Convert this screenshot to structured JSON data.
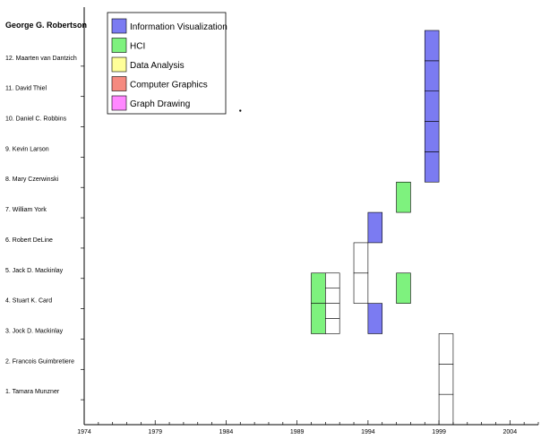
{
  "chart_data": {
    "type": "timeline",
    "title": "",
    "subject": "George G. Robertson",
    "rows": [
      "1. Tamara Munzner",
      "2. Francois Guimbretiere",
      "3. Jock D. Mackinlay",
      "4. Stuart K. Card",
      "5. Jack D. Mackinlay",
      "6. Robert DeLine",
      "7. William York",
      "8. Mary Czerwinski",
      "9. Kevin Larson",
      "10. Daniel C. Robbins",
      "11. David Thiel",
      "12. Maarten van Dantzich"
    ],
    "x_axis": {
      "min": 1974,
      "max": 2006,
      "ticks": [
        1974,
        1979,
        1984,
        1989,
        1994,
        1999,
        2004
      ],
      "minor_step": 1
    },
    "categories": [
      {
        "name": "Information Visualization",
        "color": "#7b7bf2"
      },
      {
        "name": "HCI",
        "color": "#7ef27e"
      },
      {
        "name": "Data Analysis",
        "color": "#ffff99"
      },
      {
        "name": "Computer Graphics",
        "color": "#f58a80"
      },
      {
        "name": "Graph Drawing",
        "color": "#ff88ff"
      }
    ],
    "legend_position": "top-left",
    "point": {
      "year": 1985,
      "row": 10
    },
    "cells": [
      {
        "year": 1990,
        "row_from": 3,
        "row_to": 4,
        "category": "HCI"
      },
      {
        "year": 1990,
        "row_from": 4,
        "row_to": 5,
        "category": "HCI"
      },
      {
        "year": 1991,
        "row_from": 3,
        "row_to": 3.5,
        "category": null
      },
      {
        "year": 1991,
        "row_from": 3.5,
        "row_to": 4,
        "category": null
      },
      {
        "year": 1991,
        "row_from": 4,
        "row_to": 4.5,
        "category": null
      },
      {
        "year": 1991,
        "row_from": 4.5,
        "row_to": 5,
        "category": null
      },
      {
        "year": 1993,
        "row_from": 4,
        "row_to": 5,
        "category": null
      },
      {
        "year": 1993,
        "row_from": 5,
        "row_to": 6,
        "category": null
      },
      {
        "year": 1994,
        "row_from": 3,
        "row_to": 4,
        "category": "Information Visualization"
      },
      {
        "year": 1994,
        "row_from": 6,
        "row_to": 7,
        "category": "Information Visualization"
      },
      {
        "year": 1996,
        "row_from": 4,
        "row_to": 5,
        "category": "HCI"
      },
      {
        "year": 1996,
        "row_from": 7,
        "row_to": 8,
        "category": "HCI"
      },
      {
        "year": 1998,
        "row_from": 8,
        "row_to": 9,
        "category": "Information Visualization"
      },
      {
        "year": 1998,
        "row_from": 9,
        "row_to": 10,
        "category": "Information Visualization"
      },
      {
        "year": 1998,
        "row_from": 10,
        "row_to": 11,
        "category": "Information Visualization"
      },
      {
        "year": 1998,
        "row_from": 11,
        "row_to": 12,
        "category": "Information Visualization"
      },
      {
        "year": 1998,
        "row_from": 12,
        "row_to": 13,
        "category": "Information Visualization"
      },
      {
        "year": 1999,
        "row_from": 0,
        "row_to": 1,
        "category": null
      },
      {
        "year": 1999,
        "row_from": 1,
        "row_to": 2,
        "category": null
      },
      {
        "year": 1999,
        "row_from": 2,
        "row_to": 3,
        "category": null
      }
    ]
  }
}
